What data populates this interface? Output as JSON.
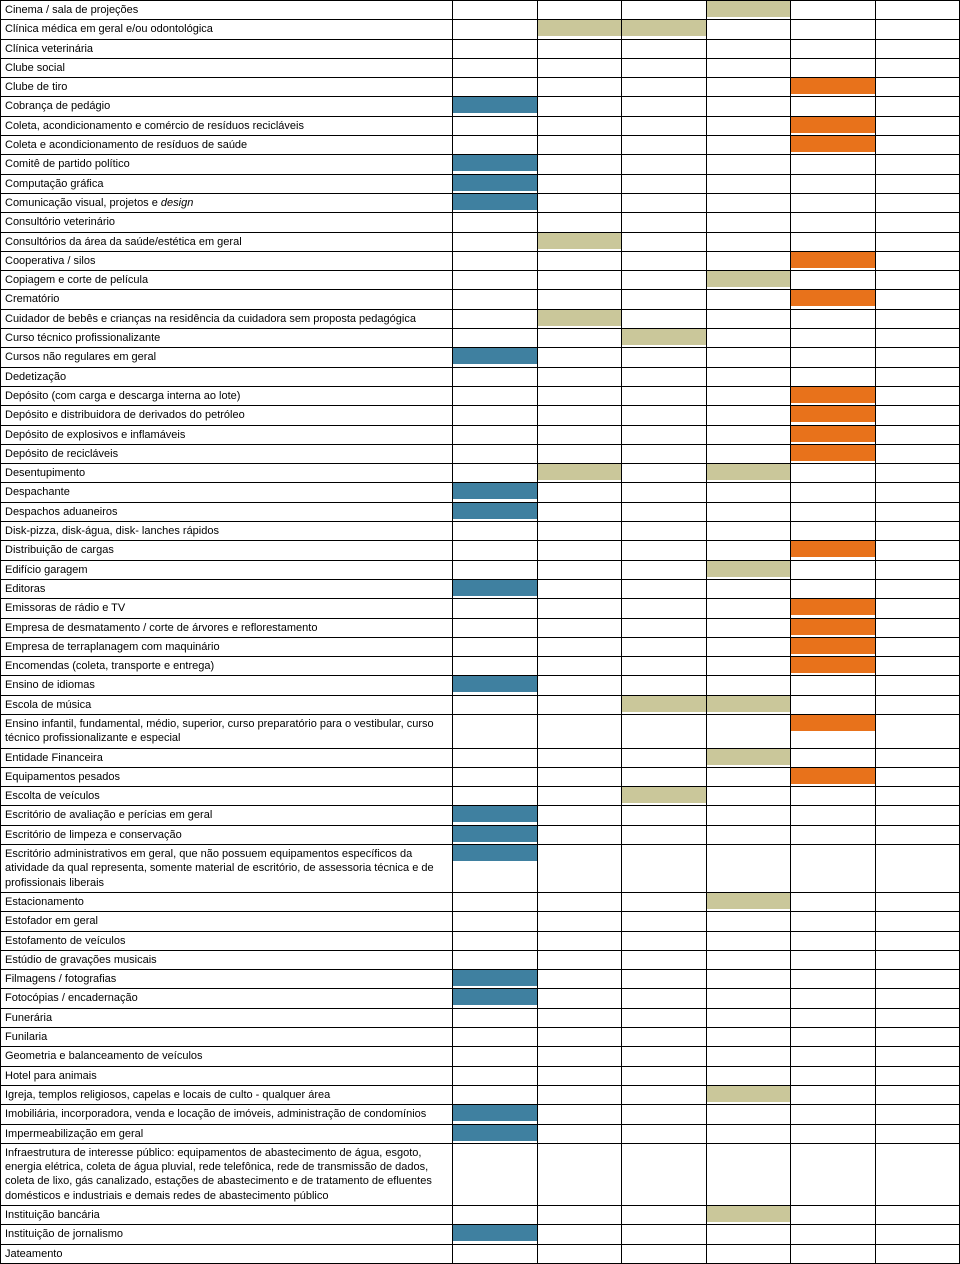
{
  "colors": {
    "blue": "#3f80a0",
    "tan": "#cac79a",
    "orange": "#e8721b",
    "none": ""
  },
  "columns": 6,
  "rows": [
    {
      "label": "Cinema / sala de projeções",
      "cells": [
        "",
        "",
        "",
        "tan",
        "",
        ""
      ]
    },
    {
      "label": "Clínica médica em geral e/ou odontológica",
      "cells": [
        "",
        "tan",
        "tan",
        "",
        "",
        ""
      ]
    },
    {
      "label": "Clínica veterinária",
      "cells": [
        "",
        "",
        "",
        "",
        "",
        ""
      ]
    },
    {
      "label": "Clube social",
      "cells": [
        "",
        "",
        "",
        "",
        "",
        ""
      ]
    },
    {
      "label": "Clube de tiro",
      "cells": [
        "",
        "",
        "",
        "",
        "orange",
        ""
      ]
    },
    {
      "label": "Cobrança de pedágio",
      "cells": [
        "blue",
        "",
        "",
        "",
        "",
        ""
      ]
    },
    {
      "label": "Coleta, acondicionamento e comércio de resíduos recicláveis",
      "cells": [
        "",
        "",
        "",
        "",
        "orange",
        ""
      ]
    },
    {
      "label": "Coleta e acondicionamento de resíduos de saúde",
      "cells": [
        "",
        "",
        "",
        "",
        "orange",
        ""
      ]
    },
    {
      "label": "Comitê de partido político",
      "cells": [
        "blue",
        "",
        "",
        "",
        "",
        ""
      ]
    },
    {
      "label": "Computação gráfica",
      "cells": [
        "blue",
        "",
        "",
        "",
        "",
        ""
      ]
    },
    {
      "label_html": "Comunicação visual, projetos e <span class=\"italic\">design</span>",
      "label": "Comunicação visual, projetos e design",
      "cells": [
        "blue",
        "",
        "",
        "",
        "",
        ""
      ]
    },
    {
      "label": "Consultório veterinário",
      "cells": [
        "",
        "",
        "",
        "",
        "",
        ""
      ]
    },
    {
      "label": "Consultórios da área da saúde/estética em geral",
      "cells": [
        "",
        "tan",
        "",
        "",
        "",
        ""
      ]
    },
    {
      "label": "Cooperativa / silos",
      "cells": [
        "",
        "",
        "",
        "",
        "orange",
        ""
      ]
    },
    {
      "label": "Copiagem e corte de película",
      "cells": [
        "",
        "",
        "",
        "tan",
        "",
        ""
      ]
    },
    {
      "label": "Crematório",
      "cells": [
        "",
        "",
        "",
        "",
        "orange",
        ""
      ]
    },
    {
      "label": "Cuidador de bebês e crianças na residência da cuidadora sem proposta pedagógica",
      "cells": [
        "",
        "tan",
        "",
        "",
        "",
        ""
      ]
    },
    {
      "label": "Curso técnico profissionalizante",
      "cells": [
        "",
        "",
        "tan",
        "",
        "",
        ""
      ]
    },
    {
      "label": "Cursos não regulares em geral",
      "cells": [
        "blue",
        "",
        "",
        "",
        "",
        ""
      ]
    },
    {
      "label": "Dedetização",
      "cells": [
        "",
        "",
        "",
        "",
        "",
        ""
      ]
    },
    {
      "label": "Depósito (com carga e descarga interna ao lote)",
      "cells": [
        "",
        "",
        "",
        "",
        "orange",
        ""
      ]
    },
    {
      "label": "Depósito e distribuidora de derivados do petróleo",
      "cells": [
        "",
        "",
        "",
        "",
        "orange",
        ""
      ]
    },
    {
      "label": "Depósito de explosivos e inflamáveis",
      "cells": [
        "",
        "",
        "",
        "",
        "orange",
        ""
      ]
    },
    {
      "label": "Depósito de recicláveis",
      "cells": [
        "",
        "",
        "",
        "",
        "orange",
        ""
      ]
    },
    {
      "label": "Desentupimento",
      "cells": [
        "",
        "tan",
        "",
        "tan",
        "",
        ""
      ]
    },
    {
      "label": "Despachante",
      "cells": [
        "blue",
        "",
        "",
        "",
        "",
        ""
      ]
    },
    {
      "label": "Despachos aduaneiros",
      "cells": [
        "blue",
        "",
        "",
        "",
        "",
        ""
      ]
    },
    {
      "label": "Disk-pizza, disk-água, disk- lanches rápidos",
      "cells": [
        "",
        "",
        "",
        "",
        "",
        ""
      ]
    },
    {
      "label": "Distribuição de cargas",
      "cells": [
        "",
        "",
        "",
        "",
        "orange",
        ""
      ]
    },
    {
      "label": "Edifício garagem",
      "cells": [
        "",
        "",
        "",
        "tan",
        "",
        ""
      ]
    },
    {
      "label": "Editoras",
      "cells": [
        "blue",
        "",
        "",
        "",
        "",
        ""
      ]
    },
    {
      "label": "Emissoras de rádio e TV",
      "cells": [
        "",
        "",
        "",
        "",
        "orange",
        ""
      ]
    },
    {
      "label": "Empresa de desmatamento / corte de árvores e reflorestamento",
      "cells": [
        "",
        "",
        "",
        "",
        "orange",
        ""
      ]
    },
    {
      "label": "Empresa de terraplanagem com maquinário",
      "cells": [
        "",
        "",
        "",
        "",
        "orange",
        ""
      ]
    },
    {
      "label": "Encomendas (coleta, transporte e entrega)",
      "cells": [
        "",
        "",
        "",
        "",
        "orange",
        ""
      ]
    },
    {
      "label": "Ensino de idiomas",
      "cells": [
        "blue",
        "",
        "",
        "",
        "",
        ""
      ]
    },
    {
      "label": "Escola de música",
      "cells": [
        "",
        "",
        "tan",
        "tan",
        "",
        ""
      ]
    },
    {
      "label": "Ensino infantil, fundamental, médio, superior, curso preparatório para o vestibular, curso técnico profissionalizante e especial",
      "cells": [
        "",
        "",
        "",
        "",
        "orange",
        ""
      ]
    },
    {
      "label": "Entidade Financeira",
      "cells": [
        "",
        "",
        "",
        "tan",
        "",
        ""
      ]
    },
    {
      "label": "Equipamentos pesados",
      "cells": [
        "",
        "",
        "",
        "",
        "orange",
        ""
      ]
    },
    {
      "label": "Escolta de veículos",
      "cells": [
        "",
        "",
        "tan",
        "",
        "",
        ""
      ]
    },
    {
      "label": "Escritório de avaliação e perícias em geral",
      "cells": [
        "blue",
        "",
        "",
        "",
        "",
        ""
      ]
    },
    {
      "label": "Escritório de limpeza e conservação",
      "cells": [
        "blue",
        "",
        "",
        "",
        "",
        ""
      ]
    },
    {
      "label": "Escritório administrativos em geral, que não possuem equipamentos específicos da atividade da qual representa, somente material de escritório, de assessoria técnica e de profissionais liberais",
      "cells": [
        "blue",
        "",
        "",
        "",
        "",
        ""
      ]
    },
    {
      "label": "Estacionamento",
      "cells": [
        "",
        "",
        "",
        "tan",
        "",
        ""
      ]
    },
    {
      "label": "Estofador em geral",
      "cells": [
        "",
        "",
        "",
        "",
        "",
        ""
      ]
    },
    {
      "label": "Estofamento de veículos",
      "cells": [
        "",
        "",
        "",
        "",
        "",
        ""
      ]
    },
    {
      "label": "Estúdio de gravações musicais",
      "cells": [
        "",
        "",
        "",
        "",
        "",
        ""
      ]
    },
    {
      "label": "Filmagens / fotografias",
      "cells": [
        "blue",
        "",
        "",
        "",
        "",
        ""
      ]
    },
    {
      "label": "Fotocópias / encadernação",
      "cells": [
        "blue",
        "",
        "",
        "",
        "",
        ""
      ]
    },
    {
      "label": "Funerária",
      "cells": [
        "",
        "",
        "",
        "",
        "",
        ""
      ]
    },
    {
      "label": "Funilaria",
      "cells": [
        "",
        "",
        "",
        "",
        "",
        ""
      ]
    },
    {
      "label": "Geometria e balanceamento de veículos",
      "cells": [
        "",
        "",
        "",
        "",
        "",
        ""
      ]
    },
    {
      "label": "Hotel para animais",
      "cells": [
        "",
        "",
        "",
        "",
        "",
        ""
      ]
    },
    {
      "label": "Igreja, templos religiosos, capelas e locais de culto - qualquer área",
      "cells": [
        "",
        "",
        "",
        "tan",
        "",
        ""
      ]
    },
    {
      "label": "Imobiliária, incorporadora, venda e locação de imóveis, administração de condomínios",
      "cells": [
        "blue",
        "",
        "",
        "",
        "",
        ""
      ]
    },
    {
      "label": "Impermeabilização em geral",
      "cells": [
        "blue",
        "",
        "",
        "",
        "",
        ""
      ]
    },
    {
      "label": "Infraestrutura de interesse público: equipamentos de abastecimento de água, esgoto, energia elétrica, coleta de água pluvial, rede telefônica, rede de transmissão de dados, coleta de lixo, gás canalizado, estações de abastecimento e de tratamento de efluentes domésticos e industriais e demais redes de abastecimento público",
      "cells": [
        "",
        "",
        "",
        "",
        "",
        ""
      ]
    },
    {
      "label": "Instituição bancária",
      "cells": [
        "",
        "",
        "",
        "tan",
        "",
        ""
      ]
    },
    {
      "label": "Instituição de jornalismo",
      "cells": [
        "blue",
        "",
        "",
        "",
        "",
        ""
      ]
    },
    {
      "label": "Jateamento",
      "cells": [
        "",
        "",
        "",
        "",
        "",
        ""
      ]
    }
  ]
}
